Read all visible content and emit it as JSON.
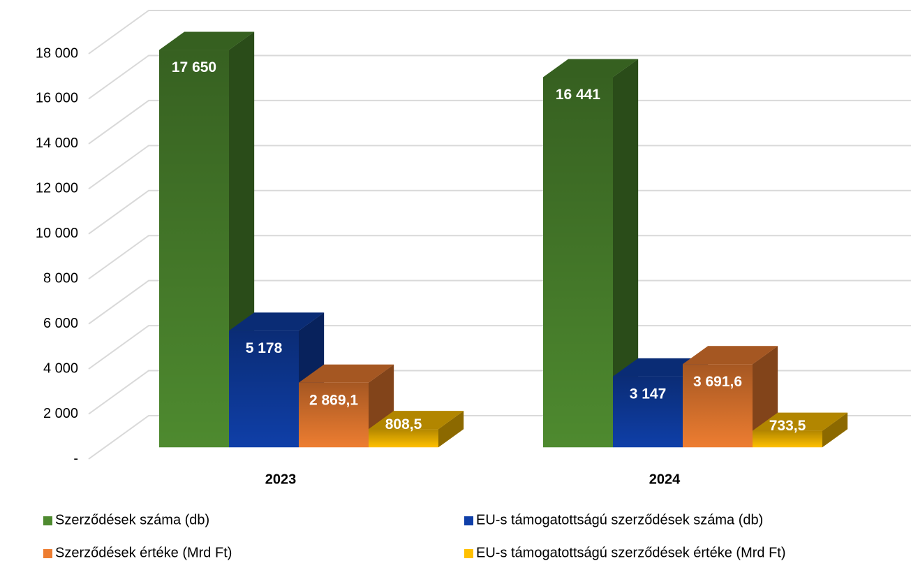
{
  "chart_data": {
    "type": "bar3d",
    "categories": [
      "2023",
      "2024"
    ],
    "series": [
      {
        "name": "Szerződések száma (db)",
        "color": "#4e8a2f",
        "values": [
          17650,
          16441
        ],
        "value_labels": [
          "17 650",
          "16 441"
        ]
      },
      {
        "name": "EU-s támogatottságú szerződések száma (db)",
        "color": "#0f3fa8",
        "values": [
          5178,
          3147
        ],
        "value_labels": [
          "5 178",
          "3 147"
        ]
      },
      {
        "name": "Szerződések értéke (Mrd Ft)",
        "color": "#ed7d31",
        "values": [
          2869.1,
          3691.6
        ],
        "value_labels": [
          "2 869,1",
          "3 691,6"
        ]
      },
      {
        "name": "EU-s támogatottságú szerződések értéke (Mrd Ft)",
        "color": "#ffc000",
        "values": [
          808.5,
          733.5
        ],
        "value_labels": [
          "808,5",
          "733,5"
        ]
      }
    ],
    "ylim": [
      0,
      18000
    ],
    "yticks": [
      {
        "value": 0,
        "label": "-"
      },
      {
        "value": 2000,
        "label": "2 000"
      },
      {
        "value": 4000,
        "label": "4 000"
      },
      {
        "value": 6000,
        "label": "6 000"
      },
      {
        "value": 8000,
        "label": "8 000"
      },
      {
        "value": 10000,
        "label": "10 000"
      },
      {
        "value": 12000,
        "label": "12 000"
      },
      {
        "value": 14000,
        "label": "14 000"
      },
      {
        "value": 16000,
        "label": "16 000"
      },
      {
        "value": 18000,
        "label": "18 000"
      }
    ],
    "grid": true
  }
}
